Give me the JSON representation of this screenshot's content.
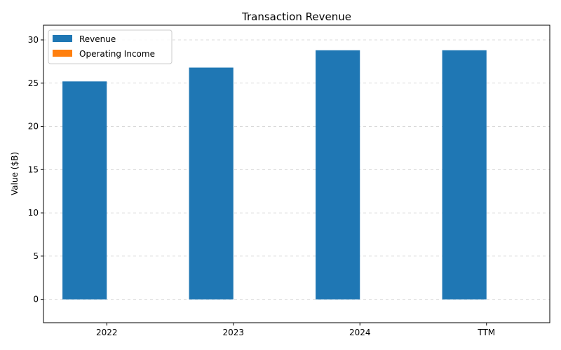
{
  "chart_data": {
    "type": "bar",
    "title": "Transaction Revenue",
    "xlabel": "",
    "ylabel": "Value ($B)",
    "categories": [
      "2022",
      "2023",
      "2024",
      "TTM"
    ],
    "series": [
      {
        "name": "Revenue",
        "color": "#1f77b4",
        "values": [
          25.2,
          26.8,
          28.8,
          28.8
        ]
      },
      {
        "name": "Operating Income",
        "color": "#ff7f0e",
        "values": [
          0,
          0,
          0,
          0
        ]
      }
    ],
    "ylim": [
      -2.7,
      31.7
    ],
    "yticks": [
      0,
      5,
      10,
      15,
      20,
      25,
      30
    ],
    "grid": true,
    "legend_position": "top-left"
  }
}
